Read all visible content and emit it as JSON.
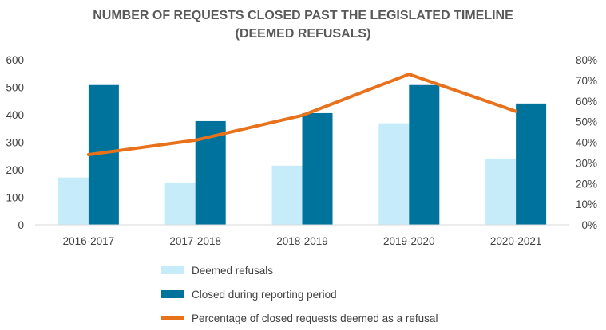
{
  "chart_data": {
    "type": "bar",
    "title_lines": [
      "NUMBER OF REQUESTS CLOSED PAST THE LEGISLATED TIMELINE",
      "(DEEMED REFUSALS)"
    ],
    "categories": [
      "2016-2017",
      "2017-2018",
      "2018-2019",
      "2019-2020",
      "2020-2021"
    ],
    "series": [
      {
        "name": "Deemed refusals",
        "type": "bar",
        "axis": "left",
        "color": "#c6ecfa",
        "values": [
          172,
          154,
          215,
          369,
          241
        ]
      },
      {
        "name": "Closed during reporting period",
        "type": "bar",
        "axis": "left",
        "color": "#00739c",
        "values": [
          508,
          377,
          406,
          508,
          441
        ]
      },
      {
        "name": "Percentage of closed requests deemed as a refusal",
        "type": "line",
        "axis": "right",
        "color": "#e8721c",
        "values": [
          34,
          41,
          53,
          73,
          55
        ]
      }
    ],
    "ylim": [
      0,
      600
    ],
    "yticks": [
      "0",
      "100",
      "200",
      "300",
      "400",
      "500",
      "600"
    ],
    "y2lim": [
      0,
      80
    ],
    "y2ticks": [
      "0%",
      "10%",
      "20%",
      "30%",
      "40%",
      "50%",
      "60%",
      "70%",
      "80%"
    ],
    "grid": false,
    "legend_position": "bottom"
  }
}
